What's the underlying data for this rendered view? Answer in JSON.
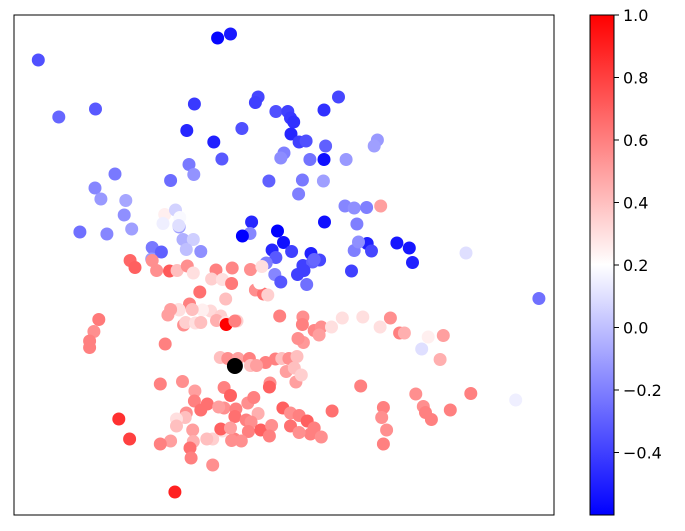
{
  "chart_data": {
    "type": "scatter",
    "title": "",
    "xlabel": "",
    "ylabel": "",
    "axes_ticks_visible": false,
    "grid": false,
    "legend": "none",
    "xlim": [
      0,
      100
    ],
    "ylim": [
      0,
      100
    ],
    "colormap": "bwr",
    "color_range": [
      -0.6,
      1.0
    ],
    "colorbar": {
      "location": "right",
      "ticks": [
        -0.4,
        -0.2,
        0.0,
        0.2,
        0.4,
        0.6,
        0.8,
        1.0
      ],
      "tick_labels": [
        "−0.4",
        "−0.2",
        "0.0",
        "0.2",
        "0.4",
        "0.6",
        "0.8",
        "1.0"
      ]
    },
    "highlight_point": {
      "x": 40.9,
      "y": 29.8,
      "color": "#000000"
    },
    "points": [
      [
        4.5,
        91.0,
        -0.35
      ],
      [
        37.7,
        95.4,
        -0.58
      ],
      [
        40.1,
        96.2,
        -0.52
      ],
      [
        8.3,
        79.6,
        -0.28
      ],
      [
        15.1,
        81.2,
        -0.32
      ],
      [
        33.4,
        82.2,
        -0.42
      ],
      [
        45.2,
        83.6,
        -0.38
      ],
      [
        44.7,
        82.5,
        -0.4
      ],
      [
        48.5,
        80.7,
        -0.35
      ],
      [
        50.7,
        80.7,
        -0.4
      ],
      [
        51.2,
        79.4,
        -0.42
      ],
      [
        51.8,
        78.6,
        -0.45
      ],
      [
        57.4,
        81.0,
        -0.45
      ],
      [
        60.1,
        83.6,
        -0.38
      ],
      [
        32.0,
        76.9,
        -0.48
      ],
      [
        42.2,
        77.3,
        -0.35
      ],
      [
        51.3,
        76.2,
        -0.48
      ],
      [
        52.8,
        74.6,
        -0.4
      ],
      [
        54.1,
        74.8,
        -0.35
      ],
      [
        57.7,
        73.8,
        -0.3
      ],
      [
        50.0,
        72.4,
        -0.2
      ],
      [
        49.4,
        71.4,
        -0.16
      ],
      [
        54.8,
        71.1,
        -0.24
      ],
      [
        57.4,
        71.1,
        -0.55
      ],
      [
        61.5,
        71.1,
        -0.12
      ],
      [
        67.3,
        75.0,
        -0.12
      ],
      [
        66.7,
        73.8,
        -0.1
      ],
      [
        37.0,
        74.6,
        -0.5
      ],
      [
        32.4,
        70.1,
        -0.22
      ],
      [
        33.3,
        68.1,
        -0.14
      ],
      [
        29.0,
        66.9,
        -0.26
      ],
      [
        38.5,
        71.2,
        -0.32
      ],
      [
        47.2,
        66.8,
        -0.3
      ],
      [
        53.4,
        67.0,
        -0.22
      ],
      [
        57.3,
        66.8,
        -0.1
      ],
      [
        52.7,
        64.2,
        -0.2
      ],
      [
        18.7,
        68.2,
        -0.22
      ],
      [
        15.0,
        65.4,
        -0.18
      ],
      [
        16.1,
        63.2,
        -0.12
      ],
      [
        20.7,
        62.9,
        -0.08
      ],
      [
        9.5,
        63.0,
        0.2
      ],
      [
        20.4,
        60.0,
        -0.15
      ],
      [
        21.8,
        57.2,
        -0.1
      ],
      [
        27.9,
        60.1,
        0.25
      ],
      [
        29.9,
        61.0,
        0.06
      ],
      [
        30.7,
        59.5,
        0.18
      ],
      [
        27.6,
        58.3,
        0.15
      ],
      [
        30.6,
        57.6,
        -0.1
      ],
      [
        31.3,
        55.1,
        -0.05
      ],
      [
        30.5,
        57.9,
        0.1
      ],
      [
        33.2,
        55.1,
        0.05
      ],
      [
        31.9,
        53.1,
        0.0
      ],
      [
        34.6,
        52.7,
        -0.15
      ],
      [
        44.0,
        58.6,
        -0.48
      ],
      [
        43.7,
        56.3,
        -0.18
      ],
      [
        48.8,
        56.8,
        -0.6
      ],
      [
        49.9,
        54.5,
        -0.55
      ],
      [
        47.8,
        53.0,
        -0.48
      ],
      [
        51.4,
        52.7,
        -0.4
      ],
      [
        57.5,
        58.6,
        -0.55
      ],
      [
        53.5,
        49.9,
        -0.4
      ],
      [
        55.0,
        52.3,
        -0.5
      ],
      [
        55.5,
        51.0,
        -0.45
      ],
      [
        56.6,
        51.0,
        -0.38
      ],
      [
        42.3,
        55.8,
        -0.6
      ],
      [
        48.5,
        51.5,
        -0.32
      ],
      [
        54.2,
        46.1,
        -0.25
      ],
      [
        63.0,
        52.9,
        -0.2
      ],
      [
        63.5,
        58.2,
        -0.2
      ],
      [
        61.3,
        61.8,
        -0.18
      ],
      [
        63.0,
        61.4,
        -0.15
      ],
      [
        67.9,
        61.8,
        0.5
      ],
      [
        65.3,
        61.5,
        -0.2
      ],
      [
        46.7,
        50.4,
        -0.2
      ],
      [
        48.3,
        48.1,
        -0.18
      ],
      [
        52.5,
        48.1,
        -0.4
      ],
      [
        55.3,
        50.6,
        -0.3
      ],
      [
        55.6,
        51.1,
        -0.28
      ],
      [
        53.7,
        48.9,
        -0.4
      ],
      [
        49.4,
        46.6,
        -0.33
      ],
      [
        70.9,
        54.4,
        -0.53
      ],
      [
        73.2,
        53.4,
        -0.53
      ],
      [
        73.8,
        50.5,
        -0.5
      ],
      [
        65.4,
        54.3,
        -0.5
      ],
      [
        63.8,
        54.6,
        -0.15
      ],
      [
        62.5,
        48.8,
        -0.4
      ],
      [
        66.2,
        52.8,
        -0.38
      ],
      [
        83.7,
        52.4,
        0.1
      ],
      [
        97.2,
        43.3,
        -0.25
      ],
      [
        12.2,
        56.6,
        -0.25
      ],
      [
        17.2,
        56.2,
        -0.18
      ],
      [
        25.6,
        53.5,
        -0.22
      ],
      [
        25.5,
        51.2,
        -0.12
      ],
      [
        27.3,
        52.6,
        -0.3
      ],
      [
        26.4,
        48.9,
        0.55
      ],
      [
        21.5,
        50.9,
        0.68
      ],
      [
        22.4,
        49.5,
        0.7
      ],
      [
        25.6,
        50.9,
        0.55
      ],
      [
        28.8,
        48.8,
        0.72
      ],
      [
        30.2,
        48.9,
        0.4
      ],
      [
        32.1,
        49.8,
        0.55
      ],
      [
        37.4,
        49.0,
        0.6
      ],
      [
        33.2,
        48.4,
        0.3
      ],
      [
        36.6,
        47.2,
        0.35
      ],
      [
        38.6,
        47.1,
        0.3
      ],
      [
        40.3,
        46.3,
        0.62
      ],
      [
        40.4,
        49.4,
        0.58
      ],
      [
        43.8,
        49.1,
        0.55
      ],
      [
        45.9,
        49.7,
        0.3
      ],
      [
        39.2,
        43.2,
        0.4
      ],
      [
        32.5,
        42.2,
        0.6
      ],
      [
        34.4,
        44.6,
        0.65
      ],
      [
        36.4,
        40.8,
        0.32
      ],
      [
        38.3,
        39.8,
        0.35
      ],
      [
        40.5,
        40.8,
        0.2
      ],
      [
        44.7,
        45.0,
        0.55
      ],
      [
        46.2,
        44.2,
        0.65
      ],
      [
        47.0,
        44.0,
        0.35
      ],
      [
        45.5,
        46.4,
        0.2
      ],
      [
        37.5,
        38.9,
        0.45
      ],
      [
        39.2,
        38.5,
        0.3
      ],
      [
        34.9,
        41.0,
        0.25
      ],
      [
        33.0,
        41.1,
        0.4
      ],
      [
        30.5,
        41.1,
        0.3
      ],
      [
        31.4,
        38.0,
        0.55
      ],
      [
        30.6,
        41.0,
        0.3
      ],
      [
        29.0,
        41.1,
        0.5
      ],
      [
        28.5,
        40.0,
        0.5
      ],
      [
        31.8,
        38.5,
        0.35
      ],
      [
        33.6,
        38.4,
        0.3
      ],
      [
        34.6,
        38.5,
        0.4
      ],
      [
        41.3,
        38.8,
        0.35
      ],
      [
        49.2,
        39.8,
        0.6
      ],
      [
        53.5,
        39.6,
        0.55
      ],
      [
        53.4,
        38.1,
        0.6
      ],
      [
        15.7,
        39.1,
        0.62
      ],
      [
        14.8,
        36.7,
        0.55
      ],
      [
        14.0,
        34.8,
        0.6
      ],
      [
        14.0,
        33.5,
        0.6
      ],
      [
        28.0,
        34.2,
        0.6
      ],
      [
        39.3,
        38.1,
        1.0
      ],
      [
        40.9,
        38.8,
        0.6
      ],
      [
        55.6,
        36.9,
        0.58
      ],
      [
        53.6,
        34.5,
        0.52
      ],
      [
        56.9,
        37.6,
        0.55
      ],
      [
        56.5,
        36.0,
        0.5
      ],
      [
        58.8,
        37.6,
        0.3
      ],
      [
        60.8,
        39.4,
        0.3
      ],
      [
        67.8,
        37.6,
        0.3
      ],
      [
        64.6,
        39.6,
        0.3
      ],
      [
        69.7,
        39.4,
        0.55
      ],
      [
        71.4,
        36.4,
        0.6
      ],
      [
        72.3,
        36.4,
        0.45
      ],
      [
        76.7,
        35.6,
        0.25
      ],
      [
        79.5,
        35.9,
        0.5
      ],
      [
        75.5,
        33.2,
        0.1
      ],
      [
        78.9,
        31.1,
        0.45
      ],
      [
        52.6,
        35.3,
        0.55
      ],
      [
        48.4,
        31.2,
        0.6
      ],
      [
        49.6,
        31.3,
        0.4
      ],
      [
        50.9,
        31.3,
        0.55
      ],
      [
        52.4,
        31.7,
        0.4
      ],
      [
        50.4,
        28.7,
        0.5
      ],
      [
        51.9,
        29.4,
        0.4
      ],
      [
        52.2,
        26.6,
        0.5
      ],
      [
        53.2,
        28.0,
        0.35
      ],
      [
        38.2,
        31.5,
        0.4
      ],
      [
        39.6,
        31.3,
        0.55
      ],
      [
        41.5,
        31.3,
        0.5
      ],
      [
        43.6,
        31.3,
        0.6
      ],
      [
        46.6,
        30.5,
        0.6
      ],
      [
        43.8,
        29.9,
        0.4
      ],
      [
        44.9,
        29.9,
        0.5
      ],
      [
        47.4,
        26.4,
        0.55
      ],
      [
        27.1,
        26.2,
        0.6
      ],
      [
        31.2,
        26.7,
        0.55
      ],
      [
        33.5,
        24.8,
        0.5
      ],
      [
        33.4,
        22.8,
        0.6
      ],
      [
        31.9,
        20.4,
        0.55
      ],
      [
        38.9,
        25.5,
        0.6
      ],
      [
        40.1,
        23.9,
        0.7
      ],
      [
        38.9,
        21.4,
        0.55
      ],
      [
        41.1,
        21.2,
        0.6
      ],
      [
        43.3,
        22.4,
        0.55
      ],
      [
        44.4,
        23.5,
        0.6
      ],
      [
        45.2,
        20.3,
        0.45
      ],
      [
        47.3,
        25.6,
        0.7
      ],
      [
        49.8,
        21.4,
        0.7
      ],
      [
        51.2,
        20.4,
        0.55
      ],
      [
        52.8,
        19.9,
        0.6
      ],
      [
        54.3,
        18.8,
        0.7
      ],
      [
        51.2,
        17.8,
        0.65
      ],
      [
        54.9,
        16.2,
        0.6
      ],
      [
        55.6,
        17.4,
        0.6
      ],
      [
        52.8,
        16.5,
        0.55
      ],
      [
        56.9,
        15.6,
        0.55
      ],
      [
        34.6,
        21.0,
        0.65
      ],
      [
        35.8,
        22.2,
        0.65
      ],
      [
        37.9,
        21.6,
        0.5
      ],
      [
        31.7,
        19.5,
        0.4
      ],
      [
        30.1,
        19.2,
        0.3
      ],
      [
        30.1,
        17.8,
        0.4
      ],
      [
        33.1,
        17.0,
        0.5
      ],
      [
        38.6,
        16.8,
        0.3
      ],
      [
        40.9,
        19.7,
        0.65
      ],
      [
        43.0,
        19.0,
        0.6
      ],
      [
        43.9,
        18.6,
        0.55
      ],
      [
        43.4,
        16.7,
        0.6
      ],
      [
        45.7,
        17.0,
        0.7
      ],
      [
        47.7,
        17.9,
        0.55
      ],
      [
        47.3,
        15.8,
        0.6
      ],
      [
        40.8,
        15.2,
        0.6
      ],
      [
        42.1,
        14.8,
        0.55
      ],
      [
        38.3,
        17.2,
        0.7
      ],
      [
        40.1,
        17.4,
        0.5
      ],
      [
        36.8,
        15.2,
        0.35
      ],
      [
        35.7,
        15.2,
        0.4
      ],
      [
        33.2,
        14.7,
        0.45
      ],
      [
        29.0,
        14.8,
        0.5
      ],
      [
        32.6,
        13.4,
        0.65
      ],
      [
        27.1,
        14.2,
        0.6
      ],
      [
        32.8,
        11.4,
        0.6
      ],
      [
        36.8,
        10.0,
        0.55
      ],
      [
        40.3,
        14.9,
        0.55
      ],
      [
        19.4,
        19.2,
        0.85
      ],
      [
        21.4,
        15.2,
        0.8
      ],
      [
        58.9,
        20.8,
        0.65
      ],
      [
        64.2,
        25.8,
        0.6
      ],
      [
        68.4,
        21.5,
        0.6
      ],
      [
        68.1,
        19.5,
        0.55
      ],
      [
        69.0,
        17.0,
        0.55
      ],
      [
        68.4,
        14.2,
        0.6
      ],
      [
        74.4,
        24.2,
        0.55
      ],
      [
        75.8,
        21.7,
        0.55
      ],
      [
        76.2,
        20.5,
        0.6
      ],
      [
        77.3,
        19.1,
        0.6
      ],
      [
        80.8,
        21.0,
        0.6
      ],
      [
        84.6,
        24.3,
        0.6
      ],
      [
        92.9,
        23.0,
        0.15
      ],
      [
        29.8,
        4.6,
        0.9
      ]
    ]
  }
}
